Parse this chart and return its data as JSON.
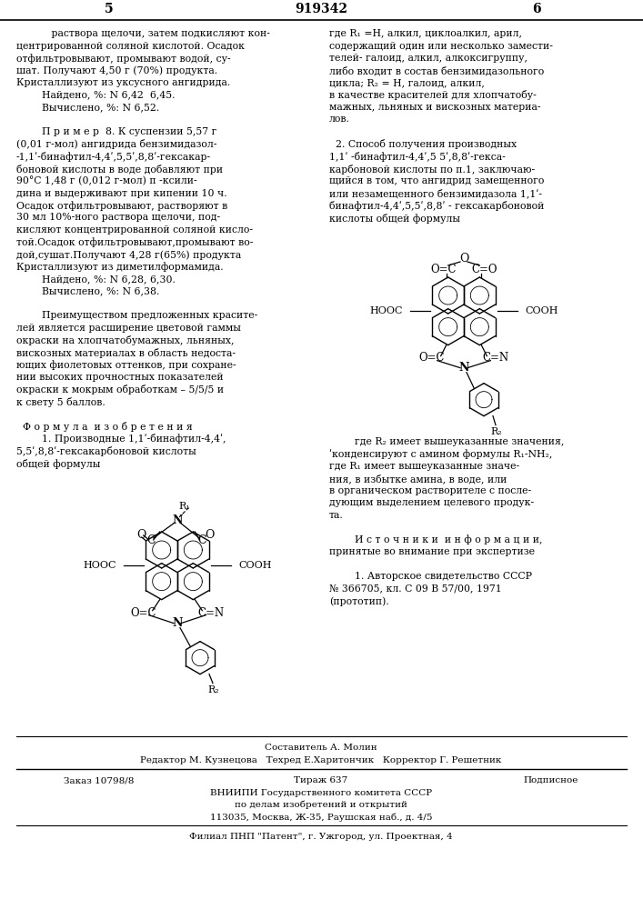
{
  "page_left": "5",
  "page_center": "919342",
  "page_right": "6",
  "col1_lines": [
    "           раствора щелочи, затем подкисляют кон-",
    "центрированной соляной кислотой. Осадок",
    "отфильтровывают, промывают водой, су-",
    "шат. Получают 4,50 г (70%) продукта.",
    "Кристаллизуют из уксусного ангидрида.",
    "        Найдено, %: N 6,42  6,45.",
    "        Вычислено, %: N 6,52.",
    "",
    "        П р и м е р  8. К суспензии 5,57 г",
    "(0,01 г-мол) ангидрида бензимидазол-",
    "-1,1ʹ-бинафтил-4,4ʹ,5,5ʹ,8,8ʹ-гексакар-",
    "боновой кислоты в воде добавляют при",
    "90°C 1,48 г (0,012 г-мол) п -ксили-",
    "дина и выдерживают при кипении 10 ч.",
    "Осадок отфильтровывают, растворяют в",
    "30 мл 10%-ного раствора щелочи, под-",
    "кисляют концентрированной соляной кисло-",
    "той.Осадок отфильтровывают,промывают во-",
    "дой,сушат.Получают 4,28 г(65%) продукта",
    "Кристаллизуют из диметилформамида.",
    "        Найдено, %: N 6,28, 6,30.",
    "        Вычислено, %: N 6,38.",
    "",
    "        Преимуществом предложенных красите-",
    "лей является расширение цветовой гаммы",
    "окраски на хлопчатобумажных, льняных,",
    "вискозных материалах в область недоста-",
    "ющих фиолетовых оттенков, при сохране-",
    "нии высоких прочностных показателей",
    "окраски к мокрым обработкам – 5/5/5 и",
    "к свету 5 баллов.",
    "",
    "  Ф о р м у л а  и з о б р е т е н и я",
    "        1. Производные 1,1ʹ-бинафтил-4,4ʹ,",
    "5,5ʹ,8,8ʹ-гексакарбоновой кислоты",
    "общей формулы"
  ],
  "col2_lines_top": [
    "где R₁ =H, алкил, циклоалкил, арил,",
    "содержащий один или несколько замести-",
    "телей- галоид, алкил, алкоксигруппу,",
    "либо входит в состав бензимидазольного",
    "цикла; R₂ = H, галоид, алкил,",
    "в качестве красителей для хлопчатобу-",
    "мажных, льняных и вискозных материа-",
    "лов.",
    "",
    "  2. Способ получения производных",
    "1,1ʹ -бинафтил-4,4ʹ,5 5ʹ,8,8ʹ-гекса-",
    "карбоновой кислоты по п.1, заключаю-",
    "щийся в том, что ангидрид замещенного",
    "или незамещенного бензимидазола 1,1ʹ-",
    "бинафтил-4,4ʹ,5,5ʹ,8,8ʹ - гексакарбоновой",
    "кислоты общей формулы"
  ],
  "col2_lines_bot": [
    "        где R₂ имеет вышеуказанные значения,",
    "ʹконденсируют с амином формулы R₁-NH₂,",
    "где R₁ имеет вышеуказанные значе-",
    "ния, в избытке амина, в воде, или",
    "в органическом растворителе с после-",
    "дующим выделением целевого продук-",
    "та.",
    "",
    "        И с т о ч н и к и  и н ф о р м а ц и и,",
    "принятые во внимание при экспертизе",
    "",
    "        1. Авторское свидетельство СССР",
    "№ 366705, кл. С 09 В 57/00, 1971",
    "(прототип)."
  ],
  "footer_author": "Составитель А. Молин",
  "footer_editors": "Редактор М. Кузнецова   Техред Е.Харитончик   Корректор Г. Решетник",
  "footer_order": "Заказ 10798/8",
  "footer_print": "Тираж 637",
  "footer_sub": "Подписное",
  "footer_org1": "ВНИИПИ Государственного комитета СССР",
  "footer_org2": "по делам изобретений и открытий",
  "footer_addr": "113035, Москва, Ж-35, Раушская наб., д. 4/5",
  "footer_branch": "Филиал ПНП \"Патент\", г. Ужгород, ул. Проектная, 4"
}
